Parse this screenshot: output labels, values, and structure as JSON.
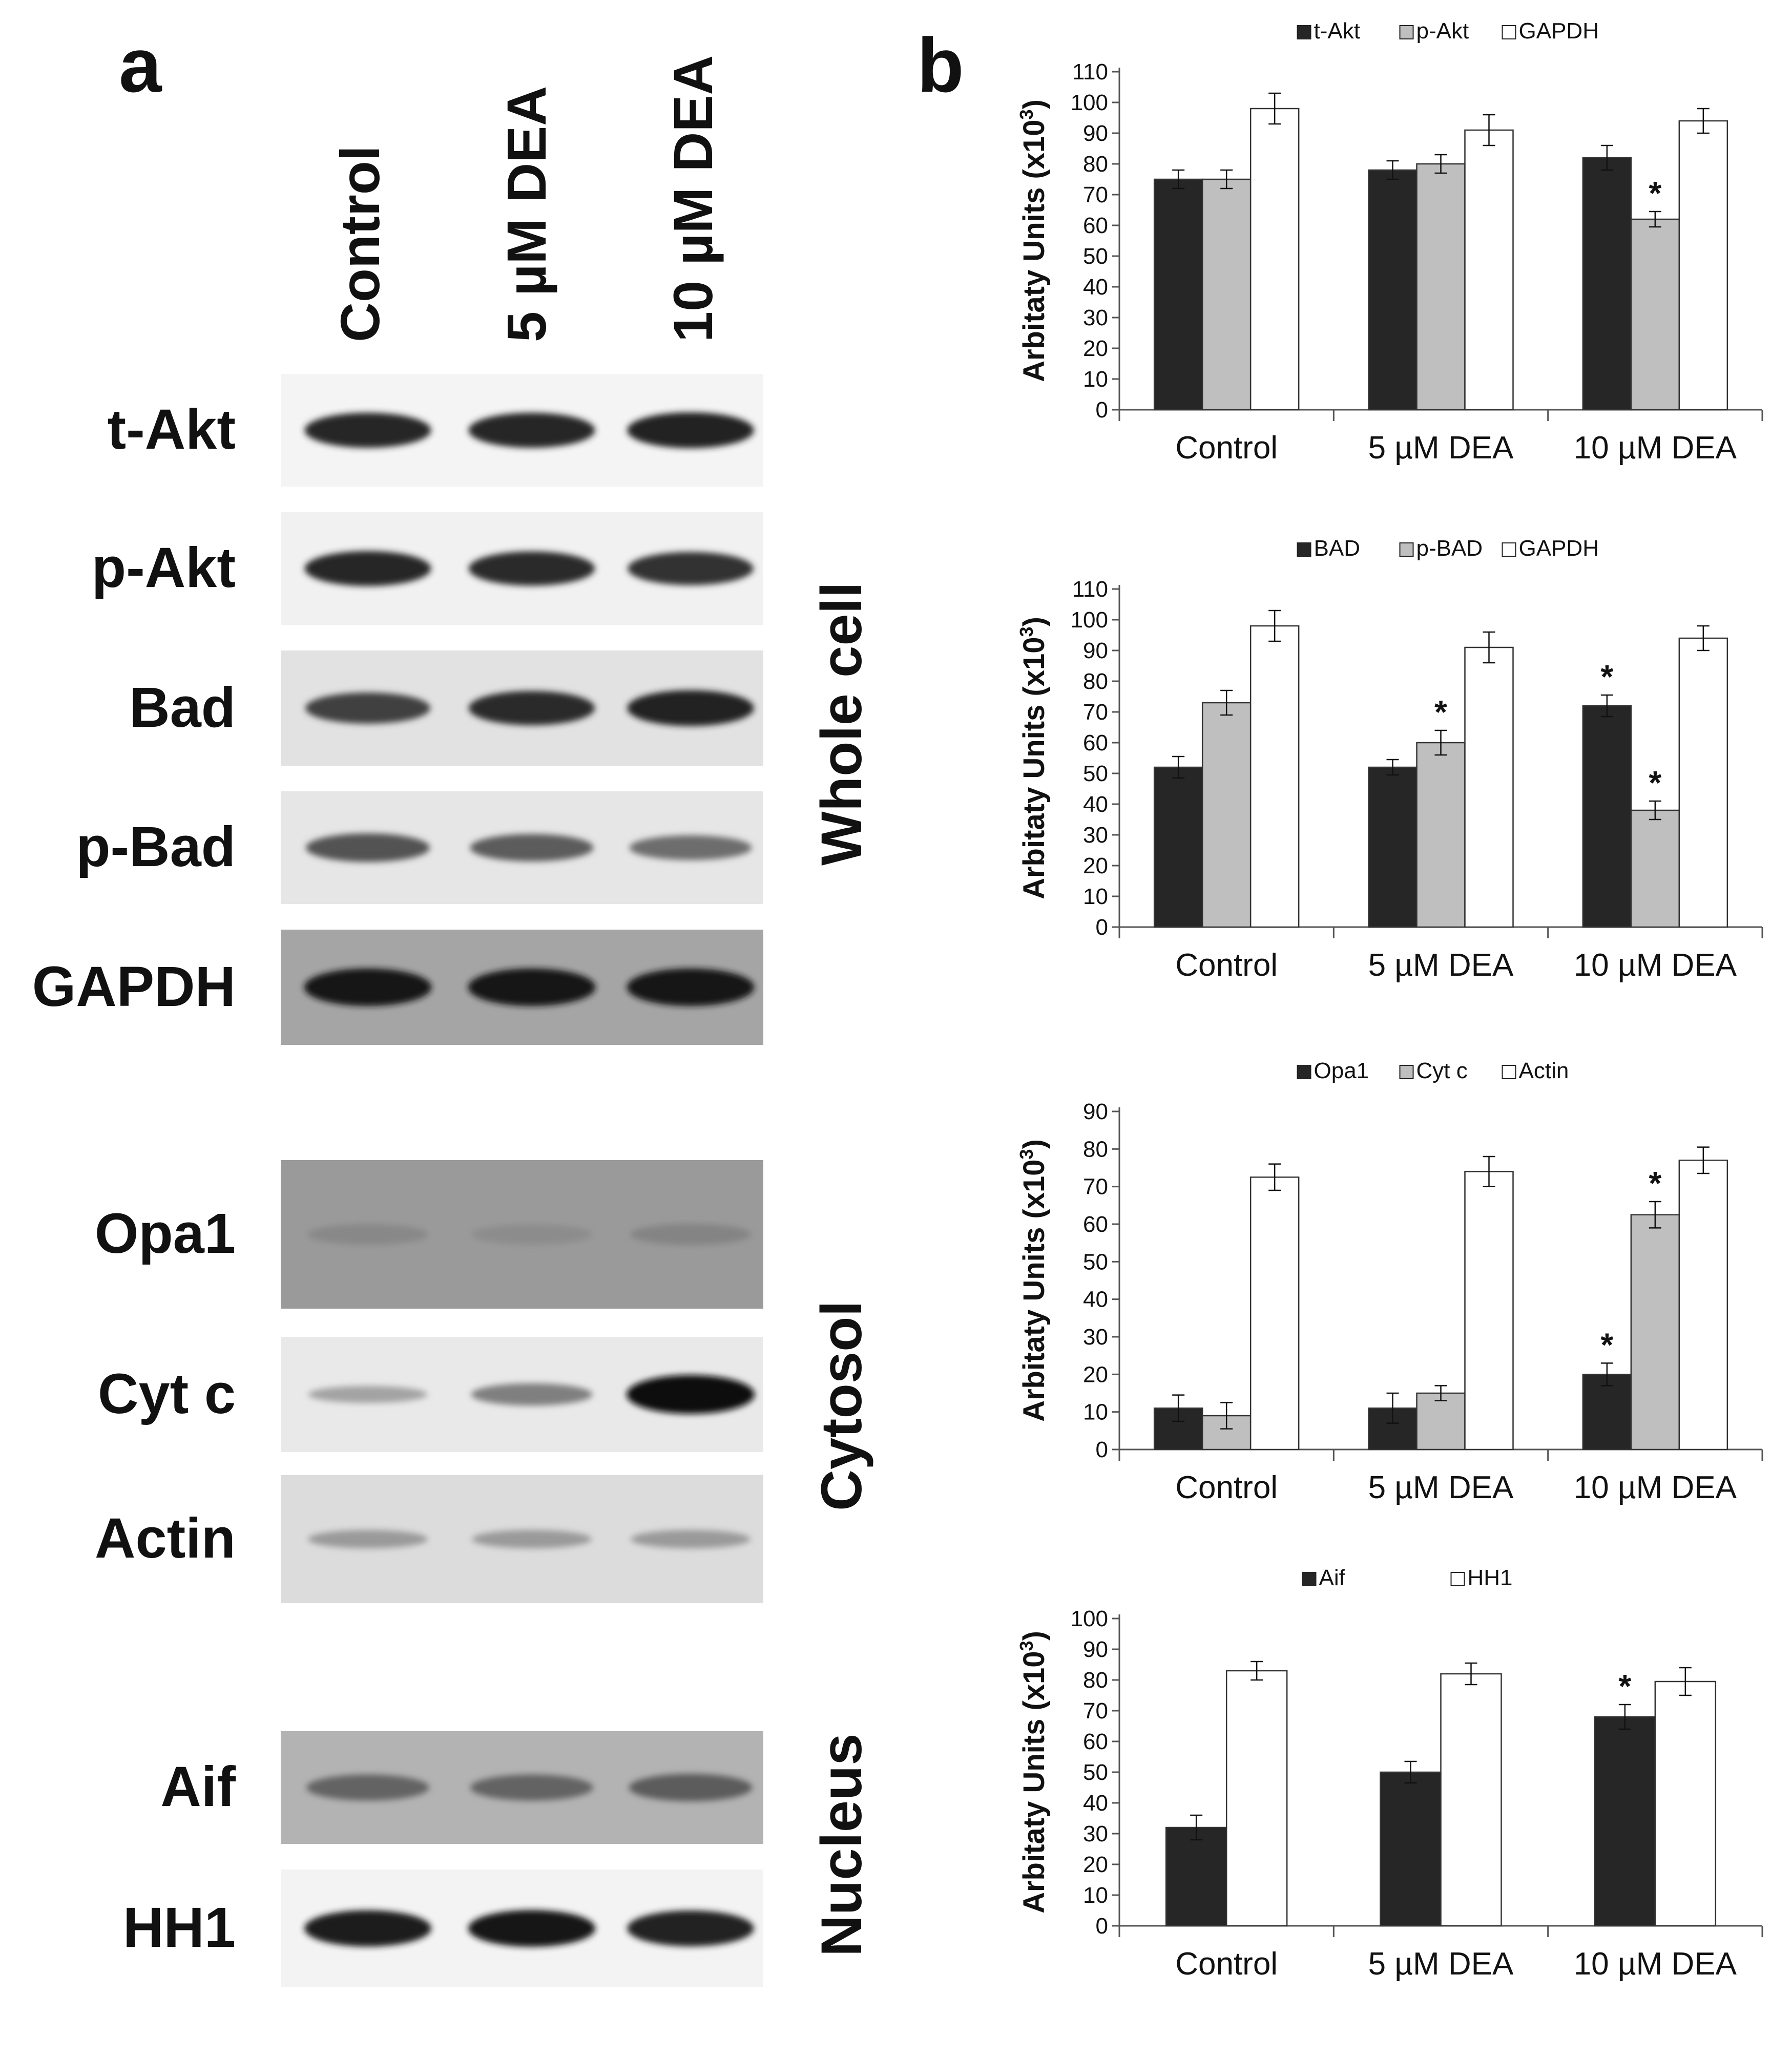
{
  "panel_a": {
    "letter": "a",
    "lanes": [
      "Control",
      "5 µM DEA",
      "10 µM DEA"
    ],
    "fractions": {
      "whole_cell": "Whole cell",
      "cytosol": "Cytosol",
      "nucleus": "Nucleus"
    },
    "blots": [
      {
        "label": "t-Akt",
        "fraction": "whole_cell",
        "background": "#f4f4f4",
        "intensity": [
          0.85,
          0.85,
          0.88
        ]
      },
      {
        "label": "p-Akt",
        "fraction": "whole_cell",
        "background": "#f1f1f1",
        "intensity": [
          0.85,
          0.82,
          0.78
        ]
      },
      {
        "label": "Bad",
        "fraction": "whole_cell",
        "background": "#e2e2e2",
        "intensity": [
          0.7,
          0.82,
          0.88
        ]
      },
      {
        "label": "p-Bad",
        "fraction": "whole_cell",
        "background": "#e6e6e6",
        "intensity": [
          0.6,
          0.55,
          0.45
        ]
      },
      {
        "label": "GAPDH",
        "fraction": "whole_cell",
        "background": "#a5a5a5",
        "intensity": [
          0.95,
          0.95,
          0.95
        ]
      },
      {
        "label": "Opa1",
        "fraction": "cytosol",
        "background": "#9a9a9a",
        "intensity": [
          0.3,
          0.28,
          0.32
        ]
      },
      {
        "label": "Cyt c",
        "fraction": "cytosol",
        "background": "#e9e9e9",
        "intensity": [
          0.15,
          0.35,
          1.0
        ]
      },
      {
        "label": "Actin",
        "fraction": "cytosol",
        "background": "#dcdcdc",
        "intensity": [
          0.2,
          0.2,
          0.2
        ]
      },
      {
        "label": "Aif",
        "fraction": "nucleus",
        "background": "#b3b3b3",
        "intensity": [
          0.5,
          0.5,
          0.55
        ]
      },
      {
        "label": "HH1",
        "fraction": "nucleus",
        "background": "#f3f3f3",
        "intensity": [
          0.9,
          0.92,
          0.88
        ]
      }
    ]
  },
  "panel_b": {
    "letter": "b"
  },
  "chart_data": [
    {
      "type": "bar",
      "categories": [
        "Control",
        "5 µM DEA",
        "10 µM DEA"
      ],
      "series": [
        {
          "name": "t-Akt",
          "color": "#262626",
          "values": [
            75,
            78,
            82
          ],
          "errors": [
            3,
            3,
            4
          ],
          "stars": [
            false,
            false,
            false
          ]
        },
        {
          "name": "p-Akt",
          "color": "#bfbfbf",
          "values": [
            75,
            80,
            62
          ],
          "errors": [
            3,
            3,
            2.5
          ],
          "stars": [
            false,
            false,
            true
          ]
        },
        {
          "name": "GAPDH",
          "color": "#ffffff",
          "values": [
            98,
            91,
            94
          ],
          "errors": [
            5,
            5,
            4
          ],
          "stars": [
            false,
            false,
            false
          ]
        }
      ],
      "ylabel": "Arbitaty Units (x10",
      "ylabel_sup": "3",
      "ylabel_tail": ")",
      "ylim": [
        0,
        110
      ],
      "yticks": [
        0,
        10,
        20,
        30,
        40,
        50,
        60,
        70,
        80,
        90,
        100,
        110
      ],
      "legend_position": "top-center",
      "star_symbol": "*"
    },
    {
      "type": "bar",
      "categories": [
        "Control",
        "5 µM DEA",
        "10 µM DEA"
      ],
      "series": [
        {
          "name": "BAD",
          "color": "#262626",
          "values": [
            52,
            52,
            72
          ],
          "errors": [
            3.5,
            2.5,
            3.5
          ],
          "stars": [
            false,
            false,
            true
          ]
        },
        {
          "name": "p-BAD",
          "color": "#bfbfbf",
          "values": [
            73,
            60,
            38
          ],
          "errors": [
            4,
            4,
            3
          ],
          "stars": [
            false,
            true,
            true
          ]
        },
        {
          "name": "GAPDH",
          "color": "#ffffff",
          "values": [
            98,
            91,
            94
          ],
          "errors": [
            5,
            5,
            4
          ],
          "stars": [
            false,
            false,
            false
          ]
        }
      ],
      "ylabel": "Arbitaty Units (x10",
      "ylabel_sup": "3",
      "ylabel_tail": ")",
      "ylim": [
        0,
        110
      ],
      "yticks": [
        0,
        10,
        20,
        30,
        40,
        50,
        60,
        70,
        80,
        90,
        100,
        110
      ],
      "legend_position": "top-center",
      "star_symbol": "*"
    },
    {
      "type": "bar",
      "categories": [
        "Control",
        "5 µM DEA",
        "10 µM DEA"
      ],
      "series": [
        {
          "name": "Opa1",
          "color": "#262626",
          "values": [
            11,
            11,
            20
          ],
          "errors": [
            3.5,
            4,
            3
          ],
          "stars": [
            false,
            false,
            true
          ]
        },
        {
          "name": "Cyt c",
          "color": "#bfbfbf",
          "values": [
            9,
            15,
            62.5
          ],
          "errors": [
            3.5,
            2,
            3.5
          ],
          "stars": [
            false,
            false,
            true
          ]
        },
        {
          "name": "Actin",
          "color": "#ffffff",
          "values": [
            72.5,
            74,
            77
          ],
          "errors": [
            3.5,
            4,
            3.5
          ],
          "stars": [
            false,
            false,
            false
          ]
        }
      ],
      "ylabel": "Arbitaty Units (x10",
      "ylabel_sup": "3",
      "ylabel_tail": ")",
      "ylim": [
        0,
        90
      ],
      "yticks": [
        0,
        10,
        20,
        30,
        40,
        50,
        60,
        70,
        80,
        90
      ],
      "legend_position": "top-center",
      "star_symbol": "*"
    },
    {
      "type": "bar",
      "categories": [
        "Control",
        "5 µM DEA",
        "10 µM DEA"
      ],
      "series": [
        {
          "name": "Aif",
          "color": "#262626",
          "values": [
            32,
            50,
            68
          ],
          "errors": [
            4,
            3.5,
            4
          ],
          "stars": [
            false,
            false,
            true
          ]
        },
        {
          "name": "HH1",
          "color": "#ffffff",
          "values": [
            83,
            82,
            79.5
          ],
          "errors": [
            3,
            3.5,
            4.5
          ],
          "stars": [
            false,
            false,
            false
          ]
        }
      ],
      "ylabel": "Arbitaty Units (x10",
      "ylabel_sup": "3",
      "ylabel_tail": ")",
      "ylim": [
        0,
        100
      ],
      "yticks": [
        0,
        10,
        20,
        30,
        40,
        50,
        60,
        70,
        80,
        90,
        100
      ],
      "legend_position": "top-center",
      "star_symbol": "*"
    }
  ]
}
